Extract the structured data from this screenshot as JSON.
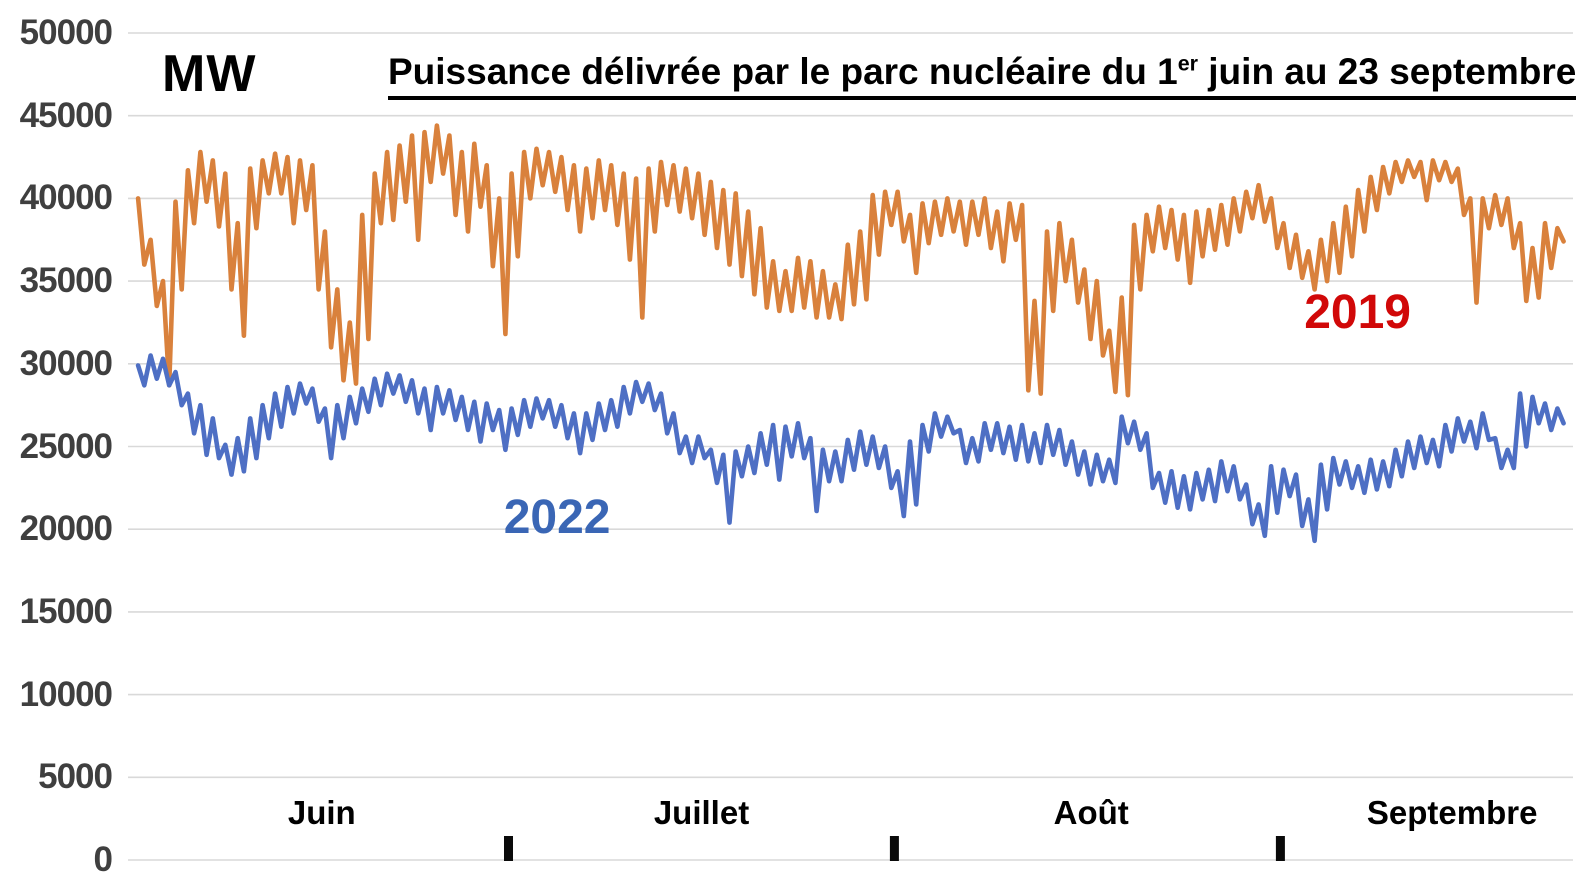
{
  "unit_label": "MW",
  "title": {
    "prefix": "Puissance délivrée par le parc nucléaire du 1",
    "superscript": "er",
    "suffix": " juin au 23 septembre"
  },
  "chart_data": {
    "type": "line",
    "title": "Puissance délivrée par le parc nucléaire du 1er juin au 23 septembre",
    "ylabel": "MW",
    "ylim": [
      0,
      50000
    ],
    "ytick_step": 5000,
    "yticks": [
      50000,
      45000,
      40000,
      35000,
      30000,
      25000,
      20000,
      15000,
      10000,
      5000,
      0
    ],
    "grid": true,
    "grid_color": "#D9D9D9",
    "tick_mark_color": "#0A0A0A",
    "axis_label_color": "#3F3F3F",
    "x_axis": {
      "start_label": "1 juin",
      "end_label": "23 septembre",
      "total_days": 115,
      "months": [
        {
          "label": "Juin",
          "start_day": 0,
          "end_day": 30,
          "label_day": 15.0
        },
        {
          "label": "Juillet",
          "start_day": 30,
          "end_day": 61,
          "label_day": 45.5
        },
        {
          "label": "Août",
          "start_day": 61,
          "end_day": 92,
          "label_day": 76.8
        },
        {
          "label": "Septembre",
          "start_day": 92,
          "end_day": 114.5,
          "label_day": 105.8
        }
      ],
      "tick_days": [
        30,
        61,
        92
      ]
    },
    "sampling_note": "values in MW, estimated daily [high, low] read from chart, 1 June = day 0",
    "series": [
      {
        "name": "2019",
        "line_color": "#D9813C",
        "label_color": "#D10808",
        "daily_high_low": [
          [
            40000,
            36000
          ],
          [
            37500,
            33500
          ],
          [
            35000,
            28700
          ],
          [
            39800,
            34500
          ],
          [
            41700,
            38500
          ],
          [
            42800,
            39800
          ],
          [
            42300,
            38300
          ],
          [
            41500,
            34500
          ],
          [
            38500,
            31700
          ],
          [
            41800,
            38200
          ],
          [
            42300,
            40300
          ],
          [
            42700,
            40300
          ],
          [
            42500,
            38500
          ],
          [
            42300,
            39300
          ],
          [
            42000,
            34500
          ],
          [
            38000,
            31000
          ],
          [
            34500,
            29000
          ],
          [
            32500,
            28800
          ],
          [
            39000,
            31500
          ],
          [
            41500,
            38500
          ],
          [
            42800,
            38700
          ],
          [
            43200,
            39800
          ],
          [
            43800,
            37500
          ],
          [
            44000,
            41000
          ],
          [
            44400,
            41500
          ],
          [
            43800,
            39000
          ],
          [
            42800,
            38000
          ],
          [
            43300,
            39500
          ],
          [
            42000,
            35900
          ],
          [
            40000,
            31800
          ],
          [
            41500,
            36500
          ],
          [
            42800,
            40000
          ],
          [
            43000,
            40800
          ],
          [
            42800,
            40400
          ],
          [
            42500,
            39300
          ],
          [
            42000,
            38000
          ],
          [
            41800,
            38800
          ],
          [
            42300,
            39300
          ],
          [
            42000,
            38400
          ],
          [
            41500,
            36300
          ],
          [
            41200,
            32800
          ],
          [
            41800,
            38000
          ],
          [
            42200,
            39600
          ],
          [
            42000,
            39200
          ],
          [
            41800,
            38800
          ],
          [
            41500,
            37800
          ],
          [
            41000,
            37000
          ],
          [
            40500,
            36000
          ],
          [
            40300,
            35300
          ],
          [
            39200,
            34200
          ],
          [
            38200,
            33400
          ],
          [
            36200,
            33200
          ],
          [
            35600,
            33200
          ],
          [
            36400,
            33400
          ],
          [
            36200,
            32800
          ],
          [
            35600,
            32800
          ],
          [
            34800,
            32700
          ],
          [
            37200,
            33600
          ],
          [
            38000,
            33900
          ],
          [
            40200,
            36600
          ],
          [
            40400,
            38400
          ],
          [
            40400,
            37400
          ],
          [
            39000,
            35500
          ],
          [
            39700,
            37300
          ],
          [
            39800,
            37800
          ],
          [
            40000,
            38000
          ],
          [
            39800,
            37200
          ],
          [
            39800,
            37800
          ],
          [
            40000,
            37000
          ],
          [
            39200,
            36200
          ],
          [
            39700,
            37500
          ],
          [
            39600,
            28400
          ],
          [
            33800,
            28200
          ],
          [
            38000,
            33200
          ],
          [
            38500,
            35000
          ],
          [
            37500,
            33700
          ],
          [
            35700,
            31500
          ],
          [
            35000,
            30500
          ],
          [
            32000,
            28300
          ],
          [
            34000,
            28100
          ],
          [
            38400,
            34500
          ],
          [
            39000,
            36800
          ],
          [
            39500,
            37000
          ],
          [
            39300,
            36300
          ],
          [
            39000,
            34900
          ],
          [
            39200,
            36500
          ],
          [
            39300,
            36900
          ],
          [
            39600,
            37200
          ],
          [
            40000,
            38000
          ],
          [
            40400,
            38800
          ],
          [
            40800,
            38600
          ],
          [
            40000,
            37000
          ],
          [
            38500,
            35800
          ],
          [
            37800,
            35200
          ],
          [
            36800,
            34500
          ],
          [
            37500,
            35000
          ],
          [
            38500,
            35500
          ],
          [
            39500,
            36500
          ],
          [
            40500,
            38000
          ],
          [
            41300,
            39300
          ],
          [
            41900,
            40300
          ],
          [
            42200,
            41000
          ],
          [
            42300,
            41300
          ],
          [
            42200,
            39900
          ],
          [
            42300,
            41100
          ],
          [
            42200,
            41000
          ],
          [
            41800,
            39000
          ],
          [
            40000,
            33700
          ],
          [
            40000,
            38200
          ],
          [
            40200,
            38400
          ],
          [
            40000,
            37000
          ],
          [
            38500,
            33800
          ],
          [
            37000,
            34000
          ],
          [
            38500,
            35800
          ],
          [
            38200,
            37400
          ]
        ]
      },
      {
        "name": "2022",
        "line_color": "#4E6FC4",
        "label_color": "#3A66B5",
        "daily_high_low": [
          [
            29900,
            28700
          ],
          [
            30500,
            29100
          ],
          [
            30300,
            28700
          ],
          [
            29500,
            27500
          ],
          [
            28200,
            25800
          ],
          [
            27500,
            24500
          ],
          [
            26700,
            24300
          ],
          [
            25100,
            23300
          ],
          [
            25500,
            23500
          ],
          [
            26700,
            24300
          ],
          [
            27500,
            25500
          ],
          [
            28200,
            26200
          ],
          [
            28600,
            27000
          ],
          [
            28800,
            27600
          ],
          [
            28500,
            26500
          ],
          [
            27300,
            24300
          ],
          [
            27500,
            25500
          ],
          [
            28000,
            26400
          ],
          [
            28500,
            27100
          ],
          [
            29100,
            27500
          ],
          [
            29400,
            28200
          ],
          [
            29300,
            27700
          ],
          [
            29000,
            27000
          ],
          [
            28500,
            26000
          ],
          [
            28600,
            27000
          ],
          [
            28400,
            26600
          ],
          [
            28000,
            26000
          ],
          [
            27700,
            25300
          ],
          [
            27600,
            26000
          ],
          [
            27200,
            24800
          ],
          [
            27300,
            25700
          ],
          [
            27800,
            26200
          ],
          [
            27900,
            26700
          ],
          [
            27800,
            26200
          ],
          [
            27500,
            25500
          ],
          [
            27000,
            24600
          ],
          [
            27000,
            25400
          ],
          [
            27600,
            26000
          ],
          [
            27800,
            26200
          ],
          [
            28600,
            27000
          ],
          [
            28900,
            27700
          ],
          [
            28800,
            27200
          ],
          [
            28200,
            25800
          ],
          [
            27000,
            24600
          ],
          [
            25600,
            24000
          ],
          [
            25600,
            24300
          ],
          [
            24800,
            22800
          ],
          [
            24500,
            20400
          ],
          [
            24700,
            23200
          ],
          [
            25000,
            23400
          ],
          [
            25800,
            23900
          ],
          [
            26300,
            23000
          ],
          [
            26200,
            24400
          ],
          [
            26400,
            24300
          ],
          [
            25500,
            21100
          ],
          [
            24800,
            22900
          ],
          [
            24700,
            22900
          ],
          [
            25400,
            23600
          ],
          [
            25900,
            23900
          ],
          [
            25600,
            23700
          ],
          [
            25000,
            22500
          ],
          [
            23500,
            20800
          ],
          [
            25300,
            21500
          ],
          [
            26300,
            24700
          ],
          [
            27000,
            25600
          ],
          [
            26800,
            25800
          ],
          [
            26000,
            24000
          ],
          [
            25500,
            24100
          ],
          [
            26400,
            24800
          ],
          [
            26400,
            24600
          ],
          [
            26200,
            24200
          ],
          [
            26300,
            24100
          ],
          [
            25800,
            24000
          ],
          [
            26300,
            24500
          ],
          [
            26000,
            23900
          ],
          [
            25300,
            23300
          ],
          [
            24700,
            22700
          ],
          [
            24500,
            22900
          ],
          [
            24200,
            22800
          ],
          [
            26800,
            25200
          ],
          [
            26500,
            24800
          ],
          [
            25800,
            22500
          ],
          [
            23400,
            21600
          ],
          [
            23500,
            21300
          ],
          [
            23200,
            21200
          ],
          [
            23400,
            21800
          ],
          [
            23600,
            21700
          ],
          [
            24100,
            22300
          ],
          [
            23800,
            21800
          ],
          [
            22700,
            20300
          ],
          [
            21500,
            19600
          ],
          [
            23800,
            21000
          ],
          [
            23600,
            22000
          ],
          [
            23300,
            20200
          ],
          [
            21800,
            19300
          ],
          [
            23900,
            21200
          ],
          [
            24300,
            22700
          ],
          [
            24100,
            22500
          ],
          [
            23800,
            22200
          ],
          [
            24200,
            22400
          ],
          [
            24100,
            22600
          ],
          [
            24800,
            23200
          ],
          [
            25300,
            23700
          ],
          [
            25600,
            24000
          ],
          [
            25400,
            23800
          ],
          [
            26300,
            24700
          ],
          [
            26700,
            25300
          ],
          [
            26500,
            24900
          ],
          [
            27000,
            25400
          ],
          [
            25500,
            23700
          ],
          [
            24800,
            23700
          ],
          [
            28200,
            25000
          ],
          [
            28000,
            26400
          ],
          [
            27600,
            26000
          ],
          [
            27300,
            26400
          ]
        ]
      }
    ],
    "annotations": [
      {
        "text": "2019",
        "day": 98.2,
        "value": 33100,
        "color": "#D10808"
      },
      {
        "text": "2022",
        "day": 33.9,
        "value": 20700,
        "color": "#3A66B5"
      }
    ]
  }
}
